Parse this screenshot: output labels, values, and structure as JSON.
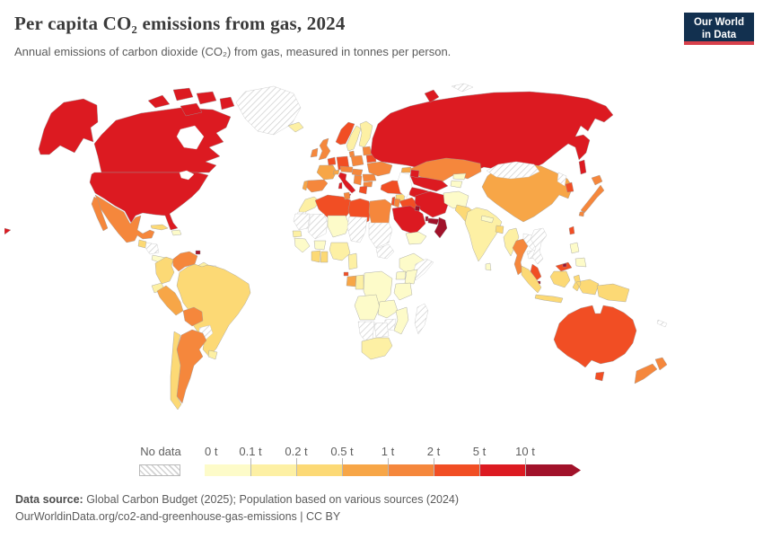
{
  "header": {
    "title": "Per capita CO₂ emissions from gas, 2024",
    "subtitle": "Annual emissions of carbon dioxide (CO₂) from gas, measured in tonnes per person.",
    "logo": {
      "line1": "Our World",
      "line2": "in Data",
      "bg": "#12304f",
      "accent": "#d8404b"
    }
  },
  "legend": {
    "no_data_label": "No data",
    "bin_colors": {
      "b1": "#fdfbc9",
      "b2": "#fdf0a4",
      "b3": "#fcd975",
      "b4": "#f7a647",
      "b5": "#f5873c",
      "b6": "#f14e24",
      "b7": "#dc1a21",
      "b8": "#a1122a"
    },
    "bins": [
      {
        "tick_label": "0 t",
        "range": "0-0.1 t",
        "color": "#fdfbc9"
      },
      {
        "tick_label": "0.1 t",
        "range": "0.1-0.2 t",
        "color": "#fdf0a4"
      },
      {
        "tick_label": "0.2 t",
        "range": "0.2-0.5 t",
        "color": "#fcd975"
      },
      {
        "tick_label": "0.5 t",
        "range": "0.5-1 t",
        "color": "#f7a647"
      },
      {
        "tick_label": "1 t",
        "range": "1-2 t",
        "color": "#f5873c"
      },
      {
        "tick_label": "2 t",
        "range": "2-5 t",
        "color": "#f14e24"
      },
      {
        "tick_label": "5 t",
        "range": "5-10 t",
        "color": "#dc1a21"
      },
      {
        "tick_label": "10 t",
        "range": "10+ t",
        "color": "#a1122a"
      }
    ]
  },
  "footer": {
    "line1_label": "Data source:",
    "line1_text": " Global Carbon Budget (2025); Population based on various sources (2024)",
    "line2": "OurWorldinData.org/co2-and-greenhouse-gas-emissions | CC BY"
  },
  "chart_data": {
    "type": "choropleth",
    "title": "Per capita CO₂ emissions from gas, 2024",
    "unit": "tonnes of CO₂ per person",
    "year": 2024,
    "legend_position": "bottom",
    "bins": [
      "0-0.1",
      "0.1-0.2",
      "0.2-0.5",
      "0.5-1",
      "1-2",
      "2-5",
      "5-10",
      "10+"
    ],
    "countries": {
      "United States": "b7",
      "Canada": "b7",
      "Greenland": "nodata",
      "Iceland": "b2",
      "Mexico": "b5",
      "Guatemala": "b3",
      "Honduras": "nodata",
      "Costa Rica": "b1",
      "Cuba": "b3",
      "Haiti": "b1",
      "Trinidad and Tobago": "b8",
      "Venezuela": "b5",
      "Colombia": "b3",
      "Ecuador": "b2",
      "Guyana": "b2",
      "Suriname": "nodata",
      "Brazil": "b3",
      "Peru": "b4",
      "Bolivia": "b5",
      "Paraguay": "nodata",
      "Argentina": "b5",
      "Chile": "b3",
      "Uruguay": "b2",
      "Norway": "b6",
      "Sweden": "b2",
      "Finland": "b2",
      "Denmark": "b5",
      "United Kingdom": "b5",
      "Ireland": "b5",
      "Netherlands": "b6",
      "Germany": "b6",
      "France": "b4",
      "Switzerland": "b4",
      "Austria": "b5",
      "Poland": "b5",
      "Baltic states": "b5",
      "Belarus": "b6",
      "Ukraine": "b5",
      "Romania": "b5",
      "Hungary": "b5",
      "Balkans": "b5",
      "Bulgaria": "b5",
      "Greece": "b6",
      "Italy": "b7",
      "Spain": "b5",
      "Portugal": "b4",
      "Morocco": "b2",
      "Western Sahara": "nodata",
      "Algeria": "b6",
      "Tunisia": "b5",
      "Libya": "b6",
      "Egypt": "b5",
      "Mauritania": "nodata",
      "Mali": "nodata",
      "Niger": "b1",
      "Chad": "nodata",
      "Sudan": "nodata",
      "South Sudan": "nodata",
      "Ethiopia": "b1",
      "Somalia": "nodata",
      "Senegal": "b2",
      "Guinea": "b1",
      "Burkina Faso": "b1",
      "Cote d'Ivoire": "b3",
      "Ghana": "b3",
      "Nigeria": "b2",
      "Cameroon": "b2",
      "Equatorial Guinea": "b6",
      "Gabon": "b4",
      "Congo": "b2",
      "DR Congo": "b1",
      "Uganda": "b1",
      "Kenya": "b1",
      "Tanzania": "b1",
      "Angola": "b1",
      "Zambia": "b1",
      "Mozambique": "b1",
      "Zimbabwe": "nodata",
      "Botswana": "nodata",
      "Namibia": "nodata",
      "South Africa": "b2",
      "Madagascar": "nodata",
      "Russia": "b7",
      "Kazakhstan": "b5",
      "Uzbekistan": "b7",
      "Turkmenistan": "b7",
      "Kyrgyzstan": "b1",
      "Tajikistan": "b1",
      "Georgia": "b4",
      "Azerbaijan": "b7",
      "Turkey": "b6",
      "Syria": "b3",
      "Iraq": "b6",
      "Israel": "b6",
      "Jordan": "b5",
      "Iran": "b7",
      "Saudi Arabia": "b7",
      "Kuwait": "b8",
      "Qatar": "b8",
      "United Arab Emirates": "b8",
      "Oman": "b8",
      "Yemen": "b1",
      "Afghanistan": "b1",
      "Pakistan": "b3",
      "India": "b2",
      "Nepal": "b1",
      "Bangladesh": "b3",
      "Sri Lanka": "b1",
      "China": "b4",
      "Mongolia": "nodata",
      "North Korea": "nodata",
      "South Korea": "b6",
      "Japan": "b5",
      "Taiwan": "b6",
      "Myanmar": "b2",
      "Thailand": "b5",
      "Laos": "nodata",
      "Cambodia": "nodata",
      "Vietnam": "nodata",
      "Malaysia": "b6",
      "Brunei": "b8",
      "Singapore": "b8",
      "Indonesia": "b3",
      "Papua New Guinea": "b3",
      "Philippines": "b1",
      "Australia": "b6",
      "New Zealand": "b5",
      "New Caledonia": "nodata",
      "Svalbard": "nodata"
    }
  }
}
